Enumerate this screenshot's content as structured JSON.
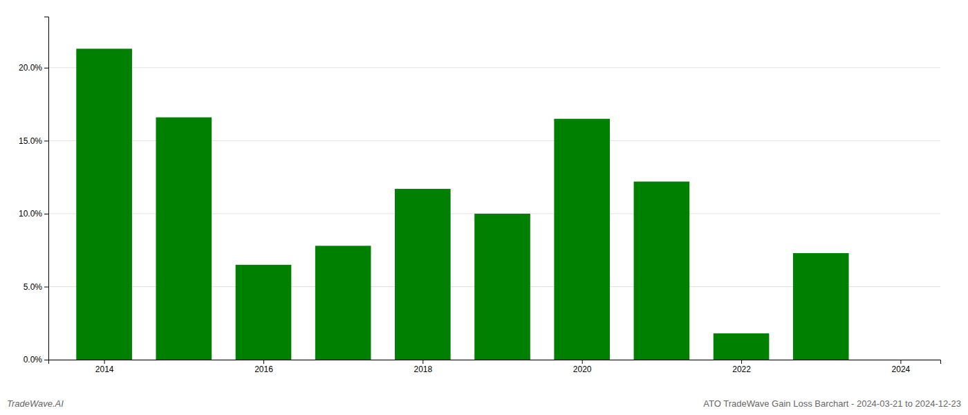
{
  "chart_data": {
    "type": "bar",
    "x": [
      2014,
      2015,
      2016,
      2017,
      2018,
      2019,
      2020,
      2021,
      2022,
      2023
    ],
    "values": [
      0.213,
      0.166,
      0.065,
      0.078,
      0.117,
      0.1,
      0.165,
      0.122,
      0.018,
      0.073
    ],
    "color": "#008000",
    "xlim": [
      2013.3,
      2024.5
    ],
    "xticks": [
      2014,
      2016,
      2018,
      2020,
      2022,
      2024
    ],
    "ylim": [
      0.0,
      0.235
    ],
    "yticks": [
      {
        "value": 0.0,
        "label": "0.0%"
      },
      {
        "value": 0.05,
        "label": "5.0%"
      },
      {
        "value": 0.1,
        "label": "10.0%"
      },
      {
        "value": 0.15,
        "label": "15.0%"
      },
      {
        "value": 0.2,
        "label": "20.0%"
      }
    ],
    "grid": true,
    "annotations": [
      "TradeWave.AI",
      "ATO TradeWave Gain Loss Barchart - 2024-03-21 to 2024-12-23"
    ]
  }
}
